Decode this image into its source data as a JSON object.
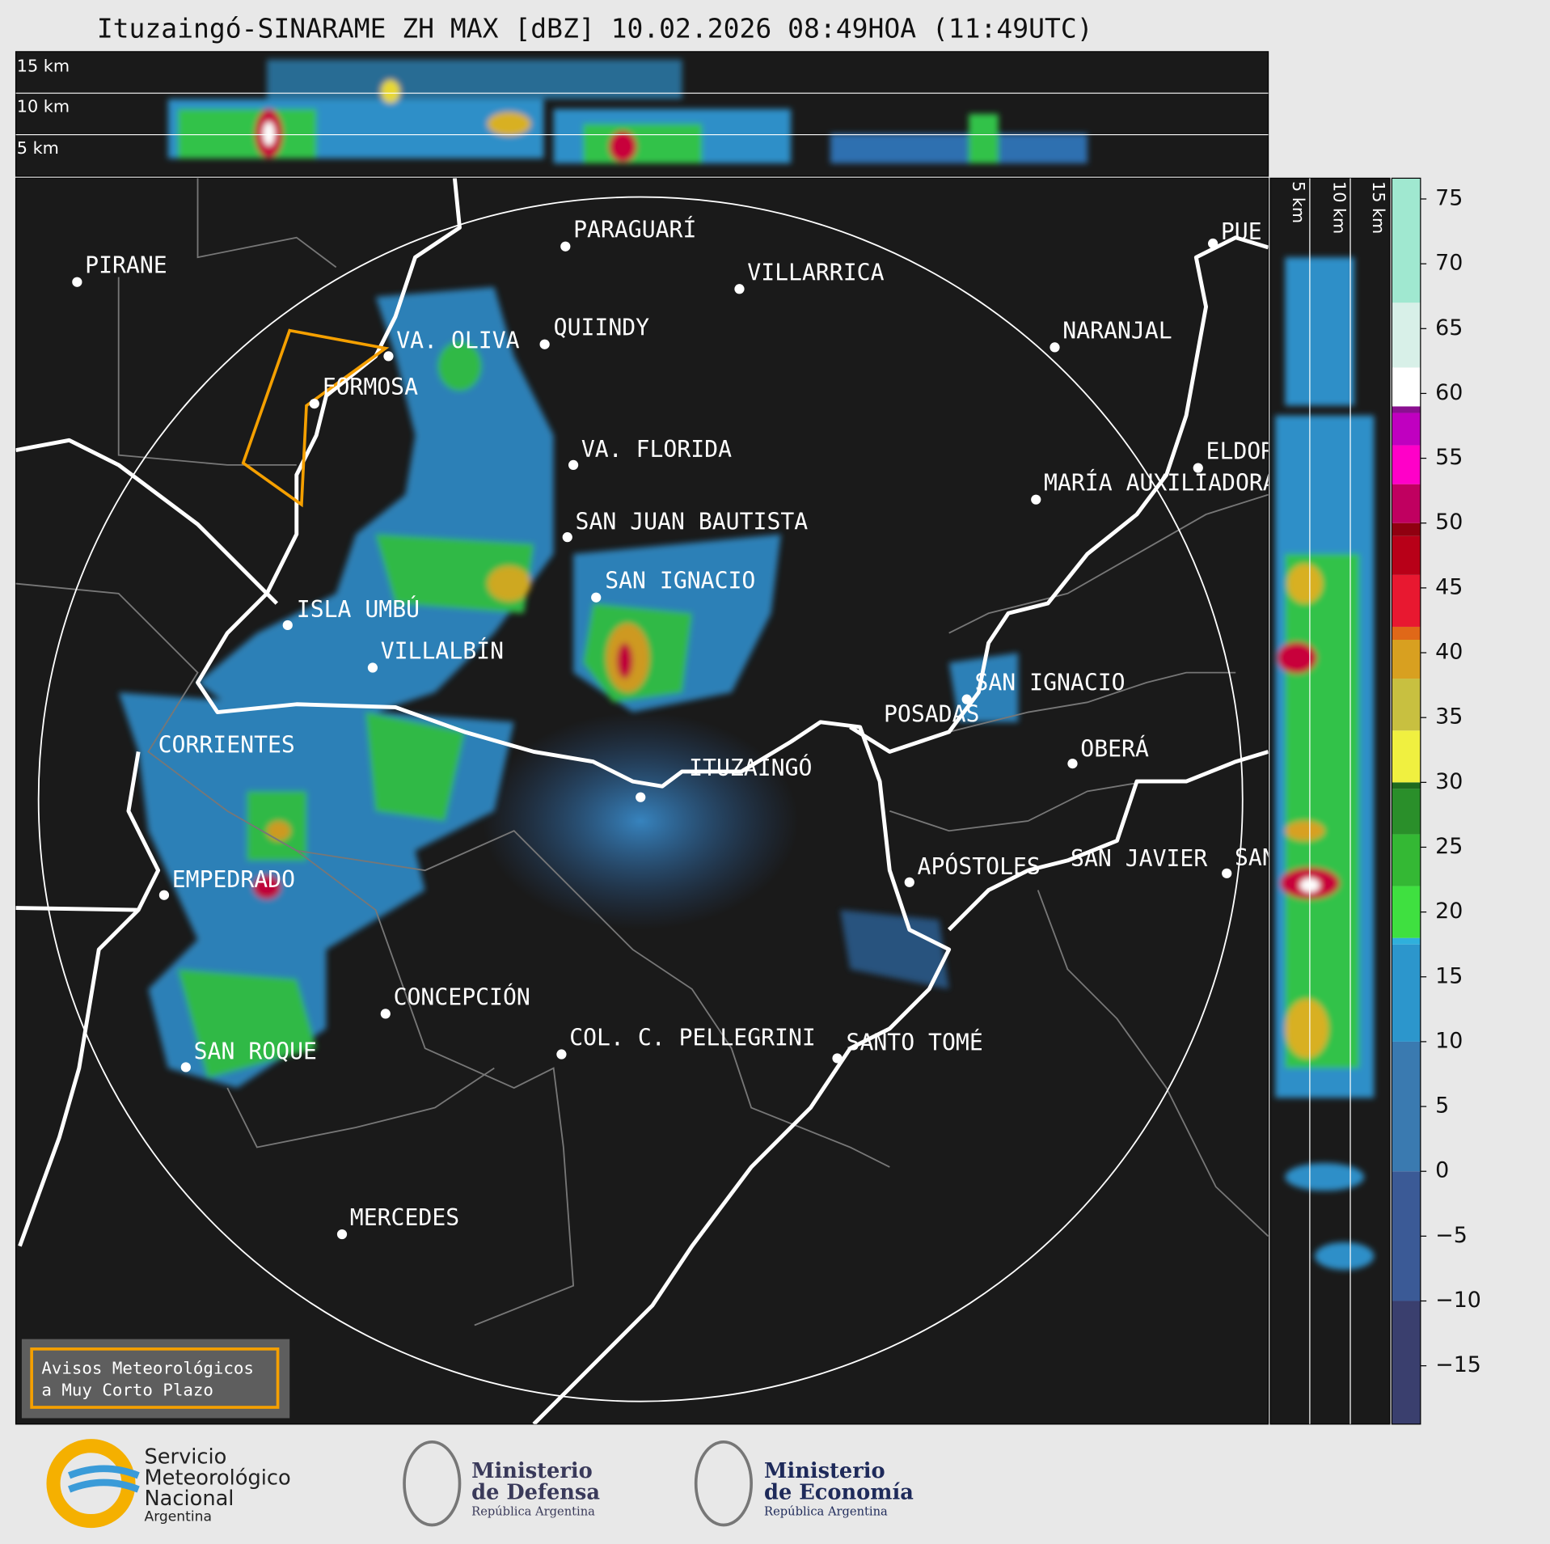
{
  "title": "Ituzaingó-SINARAME ZH MAX [dBZ] 10.02.2026 08:49HOA (11:49UTC)",
  "top_panel_heights": [
    "15 km",
    "10 km",
    "5 km"
  ],
  "side_panel_heights": [
    "5 km",
    "10 km",
    "15 km"
  ],
  "cities": [
    "PIRANE",
    "PARAGUARÍ",
    "VILLARRICA",
    "QUIINDY",
    "VA. OLIVA",
    "FORMOSA",
    "NARANJAL",
    "VA. FLORIDA",
    "ELDORADO",
    "MARÍA AUXILIADORA",
    "SAN JUAN BAUTISTA",
    "SAN IGNACIO",
    "ISLA UMBÚ",
    "VILLALBÍN",
    "SAN IGNACIO",
    "POSADAS",
    "CORRIENTES",
    "OBERÁ",
    "ITUZAINGÓ",
    "EMPEDRADO",
    "APÓSTOLES",
    "SAN JAVIER",
    "SAN",
    "CONCEPCIÓN",
    "COL. C. PELLEGRINI",
    "SANTO TOMÉ",
    "SAN ROQUE",
    "MERCEDES",
    "PUE"
  ],
  "colorbar": {
    "clim": [
      -19.5,
      76.6
    ],
    "ticks": [
      75,
      70,
      65,
      60,
      55,
      50,
      45,
      40,
      35,
      30,
      25,
      20,
      15,
      10,
      5,
      0,
      {
        "value": -5,
        "label": "−5"
      },
      {
        "value": -10,
        "label": "−10"
      },
      {
        "value": -15,
        "label": "−15"
      }
    ]
  },
  "warning_box": [
    "Avisos Meteorológicos",
    "a Muy Corto Plazo"
  ],
  "logos": {
    "smn": [
      "Servicio",
      "Meteorológico",
      "Nacional",
      "Argentina"
    ],
    "defensa": [
      "Ministerio",
      "de Defensa",
      "República Argentina"
    ],
    "economia": [
      "Ministerio",
      "de Economía",
      "República Argentina"
    ]
  }
}
